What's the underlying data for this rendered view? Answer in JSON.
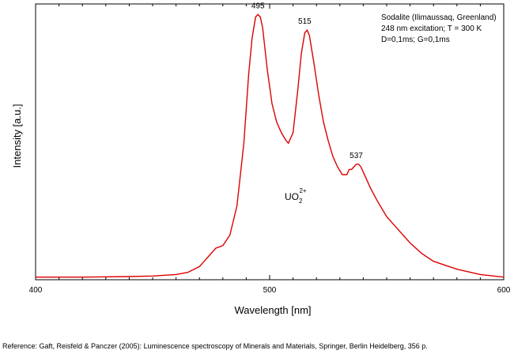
{
  "chart_data": {
    "type": "line",
    "title": "",
    "xlabel": "Wavelength [nm]",
    "ylabel": "Intensity [a.u.]",
    "xlim": [
      400,
      600
    ],
    "ylim": [
      0,
      1.05
    ],
    "x_ticks": [
      400,
      500,
      600
    ],
    "grid": false,
    "series": [
      {
        "color": "#dd0000",
        "x": [
          400,
          420,
          440,
          450,
          460,
          465,
          470,
          474,
          477,
          480,
          483,
          486,
          489,
          491,
          492.5,
          494,
          495,
          496,
          497,
          499,
          501,
          503,
          505,
          507,
          508,
          510,
          512,
          513.5,
          515,
          516,
          517,
          519,
          521,
          523,
          525,
          527,
          529,
          531,
          533,
          534,
          535,
          536,
          537,
          538,
          539,
          541,
          543,
          546,
          550,
          555,
          560,
          565,
          570,
          580,
          590,
          600
        ],
        "y": [
          0.01,
          0.01,
          0.012,
          0.014,
          0.02,
          0.028,
          0.05,
          0.09,
          0.12,
          0.13,
          0.17,
          0.28,
          0.52,
          0.78,
          0.92,
          1.0,
          1.01,
          1.0,
          0.96,
          0.8,
          0.67,
          0.6,
          0.56,
          0.53,
          0.52,
          0.56,
          0.72,
          0.86,
          0.94,
          0.95,
          0.93,
          0.82,
          0.7,
          0.6,
          0.53,
          0.47,
          0.43,
          0.4,
          0.4,
          0.42,
          0.42,
          0.43,
          0.44,
          0.44,
          0.43,
          0.39,
          0.35,
          0.3,
          0.24,
          0.19,
          0.14,
          0.1,
          0.07,
          0.04,
          0.02,
          0.01
        ]
      }
    ],
    "peak_labels": [
      {
        "x": 495,
        "y": 1.01,
        "text": "495"
      },
      {
        "x": 515,
        "y": 0.95,
        "text": "515"
      },
      {
        "x": 537,
        "y": 0.44,
        "text": "537"
      }
    ],
    "annotation": {
      "base": "UO",
      "sub": "2",
      "sup": "2+"
    }
  },
  "info_box": [
    "Sodalite (Ilimaussaq, Greenland)",
    "248 nm excitation; T = 300 K",
    "D=0,1ms; G=0,1ms"
  ],
  "reference": "Reference: Gaft, Reisfeld & Panczer (2005): Luminescence spectroscopy of Minerals and Materials, Springer, Berlin Heidelberg, 356 p."
}
